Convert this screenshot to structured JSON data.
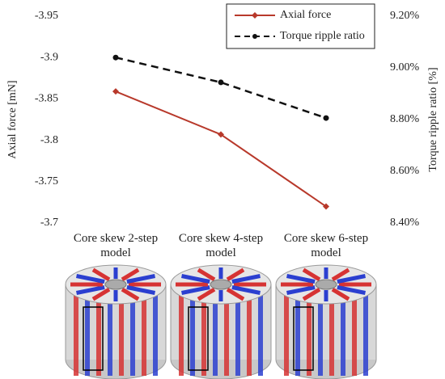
{
  "chart_data": {
    "type": "line",
    "categories": [
      "Core skew 2-step model",
      "Core skew 4-step model",
      "Core skew 6-step model"
    ],
    "series": [
      {
        "name": "Axial force",
        "color": "#b8392b",
        "marker": "diamond",
        "dash": false,
        "values": [
          -3.859,
          -3.807,
          -3.72
        ]
      },
      {
        "name": "Torque ripple ratio",
        "color": "#111111",
        "marker": "circle",
        "dash": true,
        "axis": "y2",
        "values": [
          9.04,
          8.944,
          8.806
        ]
      }
    ],
    "ylabel": "Axial force [mN]",
    "y2label": "Torque ripple ratio [%]",
    "ylim": [
      -3.7,
      -3.95
    ],
    "yticks": [
      -3.95,
      -3.9,
      -3.85,
      -3.8,
      -3.75,
      -3.7
    ],
    "y2lim": [
      8.4,
      9.2
    ],
    "y2ticks": [
      {
        "value": 9.2,
        "label": "9.20%"
      },
      {
        "value": 9.0,
        "label": "9.00%"
      },
      {
        "value": 8.8,
        "label": "8.80%"
      },
      {
        "value": 8.6,
        "label": "8.60%"
      },
      {
        "value": 8.4,
        "label": "8.40%"
      }
    ],
    "legend": "upper right",
    "grid": false
  }
}
